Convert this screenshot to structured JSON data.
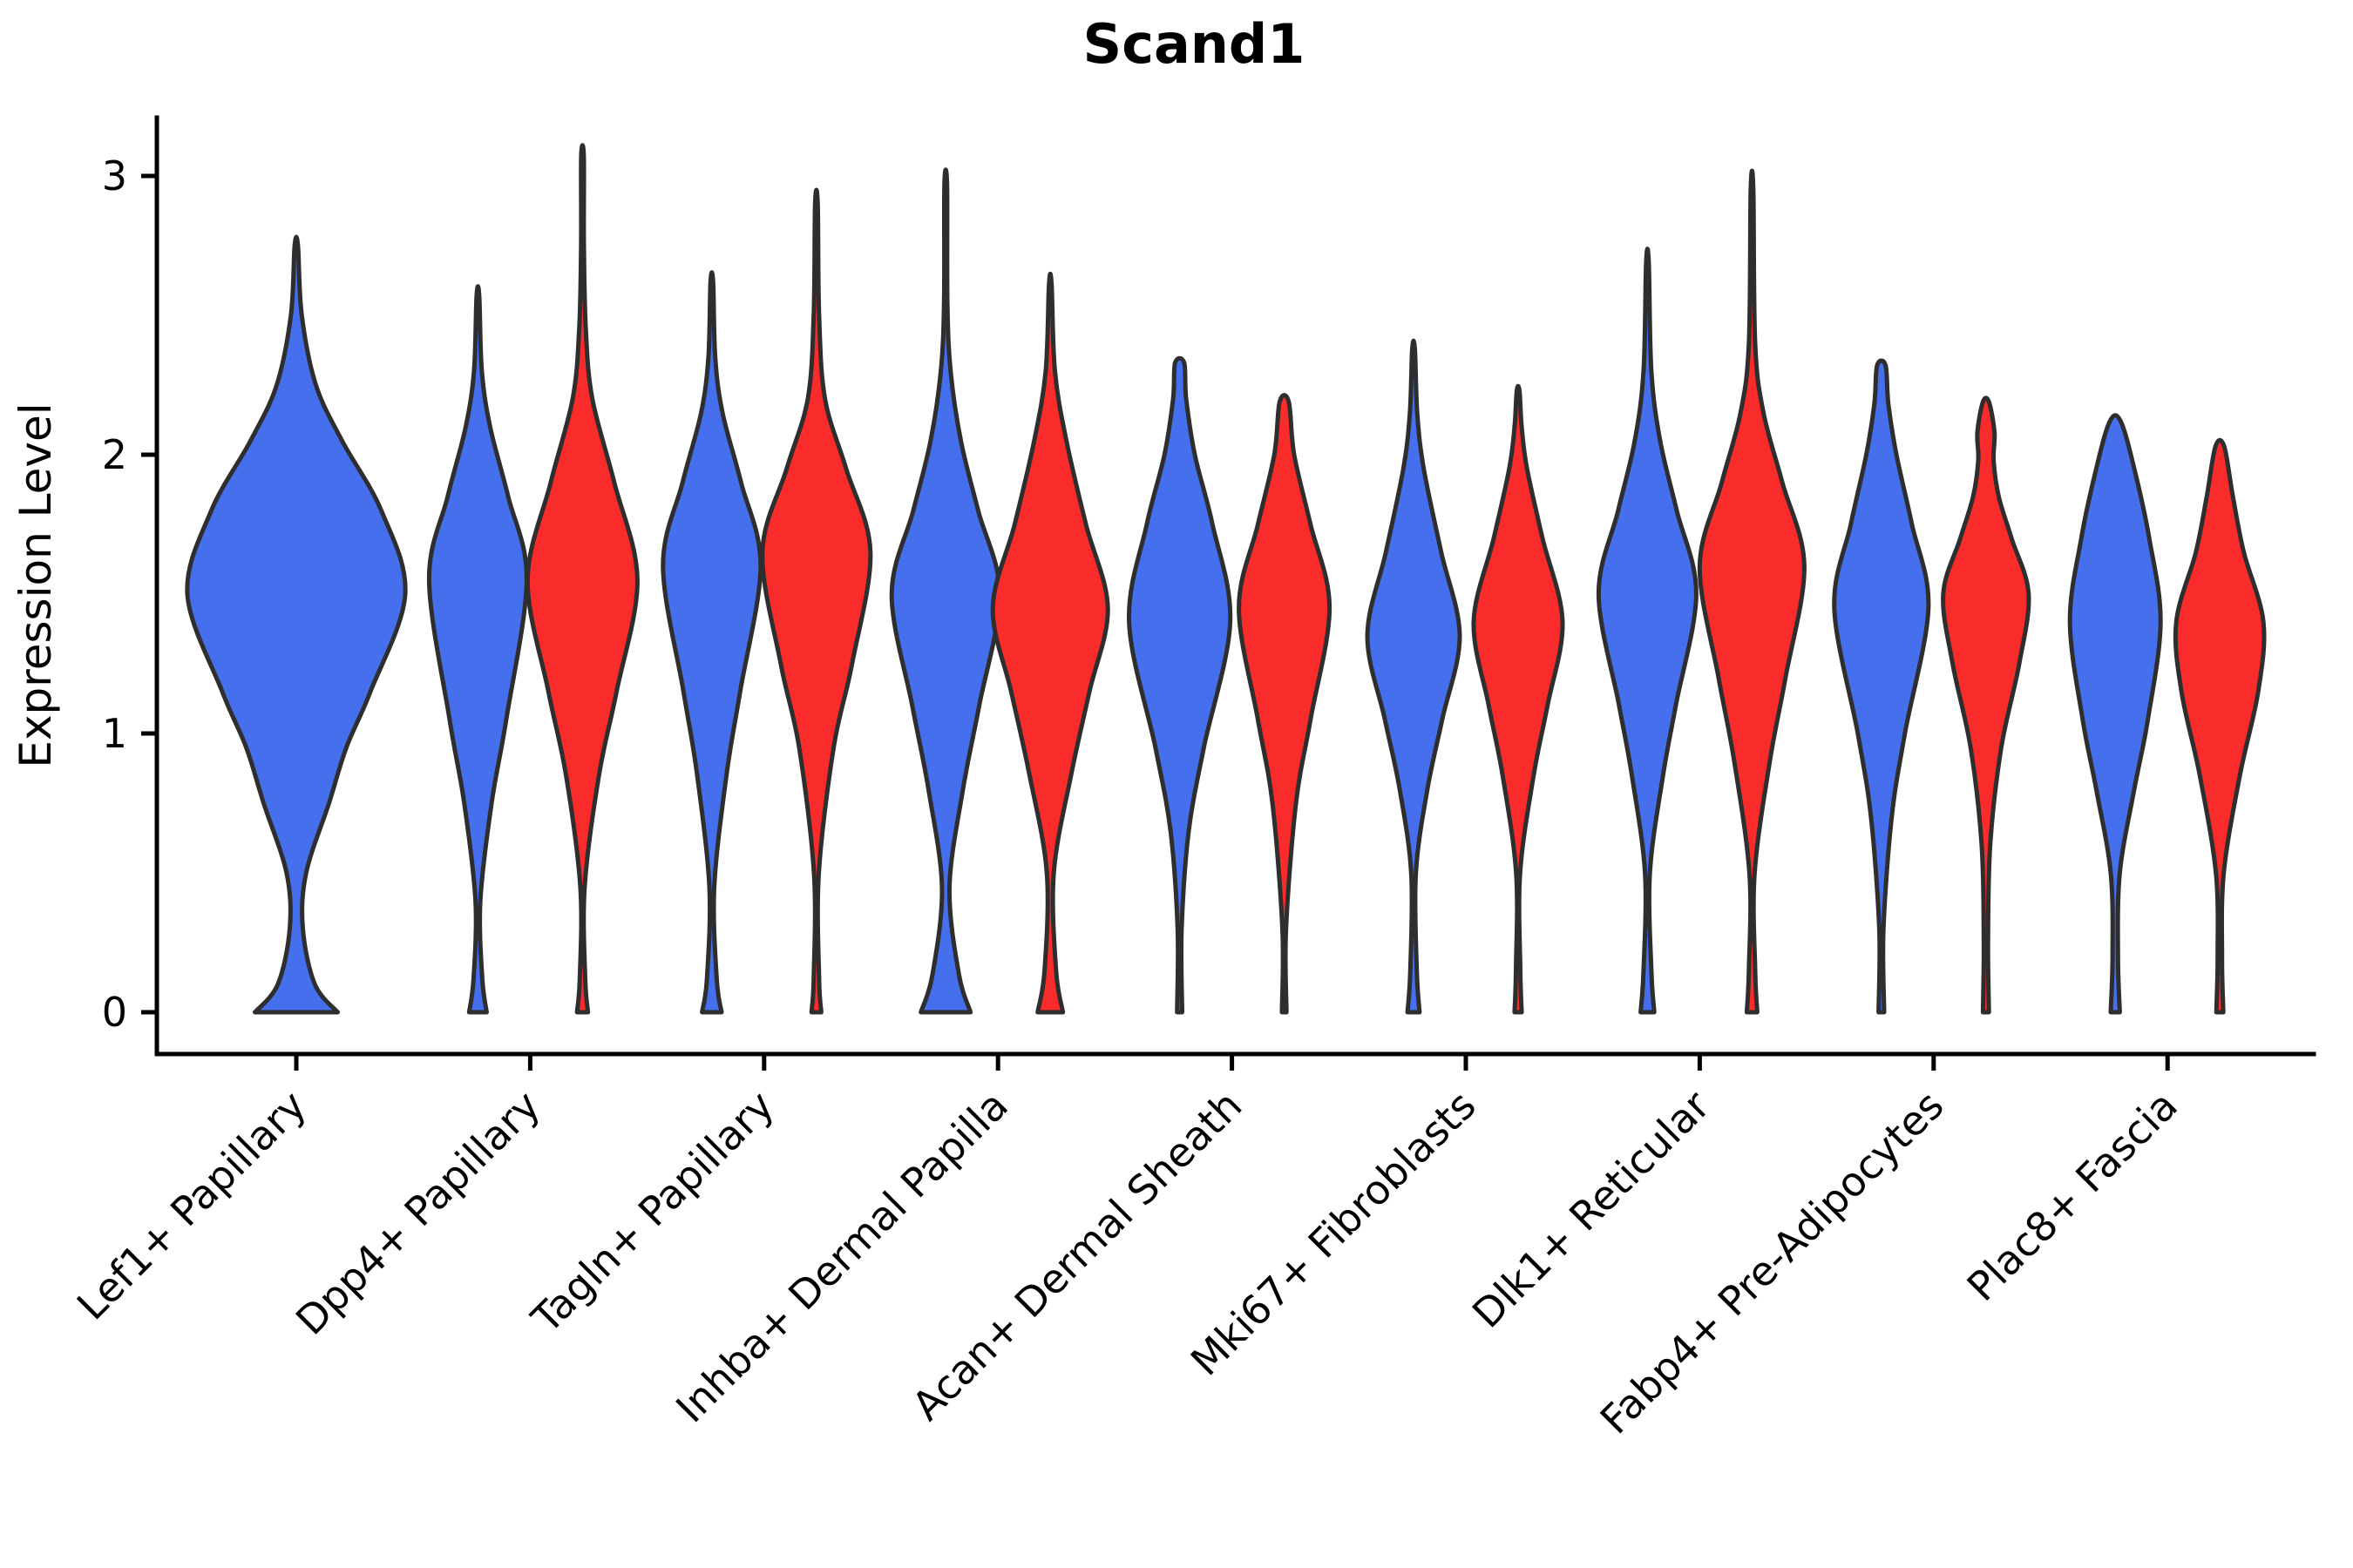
{
  "figure": {
    "title": "Scand1",
    "ylabel": "Expression Level",
    "background": "#ffffff"
  },
  "colors": {
    "blue": "#456FEC",
    "red": "#FA2B2B",
    "outline": "#2E2E2E",
    "axis": "#000000"
  },
  "chart_data": {
    "type": "violin",
    "title": "Scand1",
    "ylabel": "Expression Level",
    "xlabel": "",
    "ylim": [
      0,
      3.2
    ],
    "yticks": [
      0,
      1,
      2,
      3
    ],
    "grid": false,
    "legend": "none",
    "split_colors": {
      "blue": "#456FEC",
      "red": "#FA2B2B"
    },
    "categories": [
      "Lef1+ Papillary",
      "Dpp4+ Papillary",
      "Tagln+ Papillary",
      "Inhba+ Dermal Papilla",
      "Acan+ Dermal Sheath",
      "Mki67+ Fibroblasts",
      "Dlk1+ Reticular",
      "Fabp4+ Pre-Adipocytes",
      "Plac8+ Fascia"
    ],
    "violins": [
      {
        "cat": 0,
        "split": "blue",
        "max": 2.75,
        "mode": 1.5,
        "halfwidth": 125,
        "flat_top": false,
        "profile": [
          [
            0,
            0.38
          ],
          [
            0.1,
            0.17
          ],
          [
            0.3,
            0.06
          ],
          [
            0.5,
            0.09
          ],
          [
            0.75,
            0.3
          ],
          [
            0.95,
            0.46
          ],
          [
            1.15,
            0.68
          ],
          [
            1.5,
            1.0
          ],
          [
            1.8,
            0.78
          ],
          [
            2.05,
            0.42
          ],
          [
            2.25,
            0.18
          ],
          [
            2.5,
            0.05
          ],
          [
            2.75,
            0.015
          ]
        ]
      },
      {
        "cat": 1,
        "split": "blue",
        "max": 2.57,
        "mode": 1.55,
        "halfwidth": 56,
        "flat_top": false,
        "profile": [
          [
            0,
            0.18
          ],
          [
            0.12,
            0.09
          ],
          [
            0.4,
            0.05
          ],
          [
            0.75,
            0.28
          ],
          [
            1.05,
            0.58
          ],
          [
            1.55,
            1.0
          ],
          [
            1.85,
            0.62
          ],
          [
            2.1,
            0.25
          ],
          [
            2.3,
            0.08
          ],
          [
            2.57,
            0.018
          ]
        ]
      },
      {
        "cat": 1,
        "split": "red",
        "max": 3.07,
        "mode": 1.55,
        "halfwidth": 63,
        "flat_top": false,
        "profile": [
          [
            0,
            0.1
          ],
          [
            0.12,
            0.05
          ],
          [
            0.45,
            0.04
          ],
          [
            0.85,
            0.3
          ],
          [
            1.15,
            0.62
          ],
          [
            1.55,
            1.0
          ],
          [
            1.9,
            0.58
          ],
          [
            2.2,
            0.18
          ],
          [
            2.45,
            0.06
          ],
          [
            2.75,
            0.025
          ],
          [
            3.07,
            0.018
          ]
        ]
      },
      {
        "cat": 2,
        "split": "blue",
        "max": 2.62,
        "mode": 1.6,
        "halfwidth": 56,
        "flat_top": false,
        "profile": [
          [
            0,
            0.2
          ],
          [
            0.12,
            0.1
          ],
          [
            0.45,
            0.05
          ],
          [
            0.85,
            0.3
          ],
          [
            1.15,
            0.58
          ],
          [
            1.6,
            1.0
          ],
          [
            1.9,
            0.6
          ],
          [
            2.15,
            0.22
          ],
          [
            2.35,
            0.07
          ],
          [
            2.62,
            0.018
          ]
        ]
      },
      {
        "cat": 2,
        "split": "red",
        "max": 2.9,
        "mode": 1.65,
        "halfwidth": 62,
        "flat_top": false,
        "profile": [
          [
            0,
            0.09
          ],
          [
            0.12,
            0.05
          ],
          [
            0.5,
            0.045
          ],
          [
            0.95,
            0.32
          ],
          [
            1.25,
            0.66
          ],
          [
            1.65,
            1.0
          ],
          [
            1.95,
            0.55
          ],
          [
            2.2,
            0.16
          ],
          [
            2.5,
            0.05
          ],
          [
            2.9,
            0.018
          ]
        ]
      },
      {
        "cat": 3,
        "split": "blue",
        "max": 2.97,
        "mode": 1.5,
        "halfwidth": 62,
        "flat_top": false,
        "profile": [
          [
            0,
            0.46
          ],
          [
            0.14,
            0.24
          ],
          [
            0.45,
            0.07
          ],
          [
            0.8,
            0.32
          ],
          [
            1.1,
            0.62
          ],
          [
            1.5,
            1.0
          ],
          [
            1.8,
            0.6
          ],
          [
            2.05,
            0.28
          ],
          [
            2.3,
            0.09
          ],
          [
            2.55,
            0.03
          ],
          [
            2.97,
            0.018
          ]
        ]
      },
      {
        "cat": 3,
        "split": "red",
        "max": 2.61,
        "mode": 1.45,
        "halfwidth": 66,
        "flat_top": false,
        "profile": [
          [
            0,
            0.22
          ],
          [
            0.15,
            0.1
          ],
          [
            0.5,
            0.06
          ],
          [
            0.85,
            0.36
          ],
          [
            1.15,
            0.68
          ],
          [
            1.45,
            1.0
          ],
          [
            1.75,
            0.62
          ],
          [
            2.05,
            0.28
          ],
          [
            2.3,
            0.08
          ],
          [
            2.61,
            0.02
          ]
        ]
      },
      {
        "cat": 4,
        "split": "blue",
        "max": 2.33,
        "mode": 1.4,
        "halfwidth": 58,
        "flat_top": true,
        "profile": [
          [
            0,
            0.05
          ],
          [
            0.3,
            0.04
          ],
          [
            0.65,
            0.18
          ],
          [
            0.95,
            0.48
          ],
          [
            1.4,
            1.0
          ],
          [
            1.75,
            0.65
          ],
          [
            2.0,
            0.3
          ],
          [
            2.2,
            0.13
          ],
          [
            2.33,
            0.09
          ]
        ]
      },
      {
        "cat": 4,
        "split": "red",
        "max": 2.19,
        "mode": 1.45,
        "halfwidth": 52,
        "flat_top": true,
        "profile": [
          [
            0,
            0.05
          ],
          [
            0.3,
            0.04
          ],
          [
            0.75,
            0.26
          ],
          [
            1.05,
            0.58
          ],
          [
            1.45,
            1.0
          ],
          [
            1.75,
            0.58
          ],
          [
            2.0,
            0.22
          ],
          [
            2.19,
            0.1
          ]
        ]
      },
      {
        "cat": 5,
        "split": "blue",
        "max": 2.38,
        "mode": 1.35,
        "halfwidth": 53,
        "flat_top": false,
        "profile": [
          [
            0,
            0.13
          ],
          [
            0.15,
            0.07
          ],
          [
            0.5,
            0.05
          ],
          [
            0.8,
            0.3
          ],
          [
            1.05,
            0.62
          ],
          [
            1.35,
            1.0
          ],
          [
            1.65,
            0.6
          ],
          [
            1.95,
            0.22
          ],
          [
            2.15,
            0.08
          ],
          [
            2.38,
            0.02
          ]
        ]
      },
      {
        "cat": 5,
        "split": "red",
        "max": 2.23,
        "mode": 1.4,
        "halfwidth": 51,
        "flat_top": false,
        "profile": [
          [
            0,
            0.08
          ],
          [
            0.15,
            0.05
          ],
          [
            0.5,
            0.045
          ],
          [
            0.85,
            0.35
          ],
          [
            1.1,
            0.66
          ],
          [
            1.4,
            1.0
          ],
          [
            1.7,
            0.55
          ],
          [
            1.95,
            0.2
          ],
          [
            2.1,
            0.08
          ],
          [
            2.23,
            0.03
          ]
        ]
      },
      {
        "cat": 6,
        "split": "blue",
        "max": 2.69,
        "mode": 1.5,
        "halfwidth": 56,
        "flat_top": false,
        "profile": [
          [
            0,
            0.14
          ],
          [
            0.15,
            0.08
          ],
          [
            0.5,
            0.05
          ],
          [
            0.85,
            0.32
          ],
          [
            1.1,
            0.58
          ],
          [
            1.5,
            1.0
          ],
          [
            1.8,
            0.6
          ],
          [
            2.05,
            0.26
          ],
          [
            2.3,
            0.08
          ],
          [
            2.69,
            0.018
          ]
        ]
      },
      {
        "cat": 6,
        "split": "red",
        "max": 2.95,
        "mode": 1.6,
        "halfwidth": 60,
        "flat_top": false,
        "profile": [
          [
            0,
            0.1
          ],
          [
            0.15,
            0.06
          ],
          [
            0.5,
            0.05
          ],
          [
            0.9,
            0.34
          ],
          [
            1.2,
            0.64
          ],
          [
            1.6,
            1.0
          ],
          [
            1.9,
            0.58
          ],
          [
            2.15,
            0.22
          ],
          [
            2.4,
            0.06
          ],
          [
            2.95,
            0.018
          ]
        ]
      },
      {
        "cat": 7,
        "split": "blue",
        "max": 2.32,
        "mode": 1.45,
        "halfwidth": 54,
        "flat_top": true,
        "profile": [
          [
            0,
            0.06
          ],
          [
            0.3,
            0.045
          ],
          [
            0.7,
            0.22
          ],
          [
            1.0,
            0.5
          ],
          [
            1.45,
            1.0
          ],
          [
            1.75,
            0.65
          ],
          [
            2.0,
            0.32
          ],
          [
            2.18,
            0.15
          ],
          [
            2.32,
            0.09
          ]
        ]
      },
      {
        "cat": 7,
        "split": "red",
        "max": 2.19,
        "mode": 1.5,
        "halfwidth": 49,
        "flat_top": true,
        "profile": [
          [
            0,
            0.07
          ],
          [
            0.25,
            0.05
          ],
          [
            0.6,
            0.1
          ],
          [
            0.95,
            0.36
          ],
          [
            1.25,
            0.78
          ],
          [
            1.5,
            1.0
          ],
          [
            1.7,
            0.6
          ],
          [
            1.85,
            0.3
          ],
          [
            1.98,
            0.18
          ],
          [
            2.08,
            0.2
          ],
          [
            2.19,
            0.07
          ]
        ]
      },
      {
        "cat": 8,
        "split": "blue",
        "max": 2.12,
        "mode": 1.4,
        "halfwidth": 52,
        "flat_top": true,
        "profile": [
          [
            0,
            0.1
          ],
          [
            0.2,
            0.06
          ],
          [
            0.5,
            0.1
          ],
          [
            0.8,
            0.42
          ],
          [
            1.05,
            0.72
          ],
          [
            1.4,
            1.0
          ],
          [
            1.7,
            0.75
          ],
          [
            1.95,
            0.42
          ],
          [
            2.12,
            0.12
          ]
        ]
      },
      {
        "cat": 8,
        "split": "red",
        "max": 2.03,
        "mode": 1.4,
        "halfwidth": 50,
        "flat_top": true,
        "profile": [
          [
            0,
            0.08
          ],
          [
            0.2,
            0.05
          ],
          [
            0.5,
            0.09
          ],
          [
            0.85,
            0.46
          ],
          [
            1.15,
            0.88
          ],
          [
            1.4,
            1.0
          ],
          [
            1.65,
            0.55
          ],
          [
            1.85,
            0.3
          ],
          [
            2.03,
            0.1
          ]
        ]
      }
    ]
  }
}
